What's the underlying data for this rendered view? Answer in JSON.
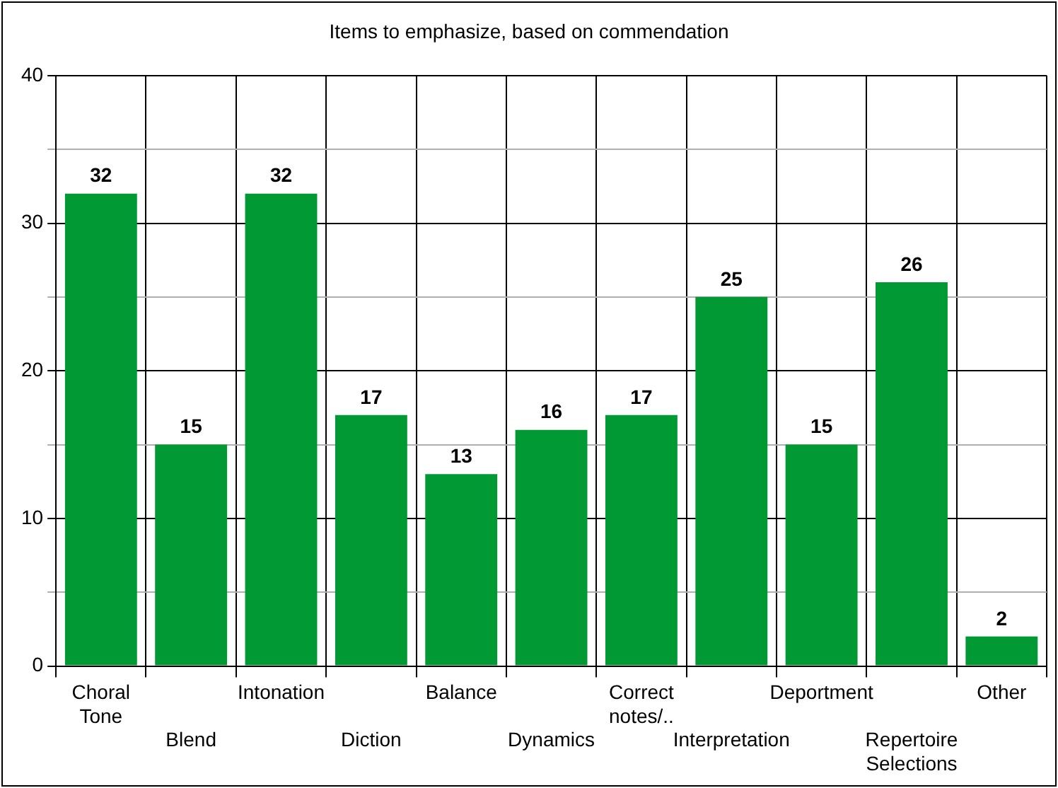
{
  "chart_data": {
    "type": "bar",
    "title": "Items to emphasize, based on commendation",
    "categories": [
      "Choral Tone",
      "Blend",
      "Intonation",
      "Diction",
      "Balance",
      "Dynamics",
      "Correct notes/..",
      "Interpretation",
      "Deportment",
      "Repertoire Selections",
      "Other"
    ],
    "values": [
      32,
      15,
      32,
      17,
      13,
      16,
      17,
      25,
      15,
      26,
      2
    ],
    "color": "#009933",
    "ylim": [
      0,
      40
    ],
    "yticks": [
      0,
      {
        "value": 5,
        "label": null
      },
      10,
      {
        "value": 15,
        "label": null
      },
      20,
      {
        "value": 25,
        "label": null
      },
      30,
      {
        "value": 35,
        "label": null
      },
      40
    ],
    "grid": true,
    "data_labels": true,
    "legend": false
  }
}
